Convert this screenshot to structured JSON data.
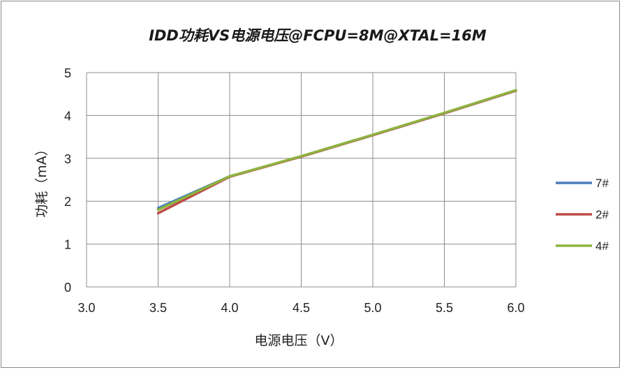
{
  "chart_data": {
    "type": "line",
    "title": "IDD功耗VS电源电压@FCPU=8M@XTAL=16M",
    "xlabel": "电源电压（V）",
    "ylabel": "功耗（mA）",
    "xlim": [
      3.0,
      6.0
    ],
    "ylim": [
      0,
      5
    ],
    "x_ticks": [
      "3.0",
      "3.5",
      "4.0",
      "4.5",
      "5.0",
      "5.5",
      "6.0"
    ],
    "y_ticks": [
      "0",
      "1",
      "2",
      "3",
      "4",
      "5"
    ],
    "grid": true,
    "legend_position": "right",
    "series": [
      {
        "name": "7#",
        "color": "#4a7ebb",
        "x": [
          3.5,
          4.0,
          4.5,
          5.0,
          5.5,
          6.0
        ],
        "y": [
          1.84,
          2.58,
          3.04,
          3.54,
          4.05,
          4.58
        ]
      },
      {
        "name": "2#",
        "color": "#be4b48",
        "x": [
          3.5,
          4.0,
          4.5,
          5.0,
          5.5,
          6.0
        ],
        "y": [
          1.72,
          2.57,
          3.04,
          3.54,
          4.05,
          4.58
        ]
      },
      {
        "name": "4#",
        "color": "#8db33f",
        "x": [
          3.5,
          4.0,
          4.5,
          5.0,
          5.5,
          6.0
        ],
        "y": [
          1.8,
          2.58,
          3.05,
          3.55,
          4.06,
          4.59
        ]
      }
    ]
  }
}
